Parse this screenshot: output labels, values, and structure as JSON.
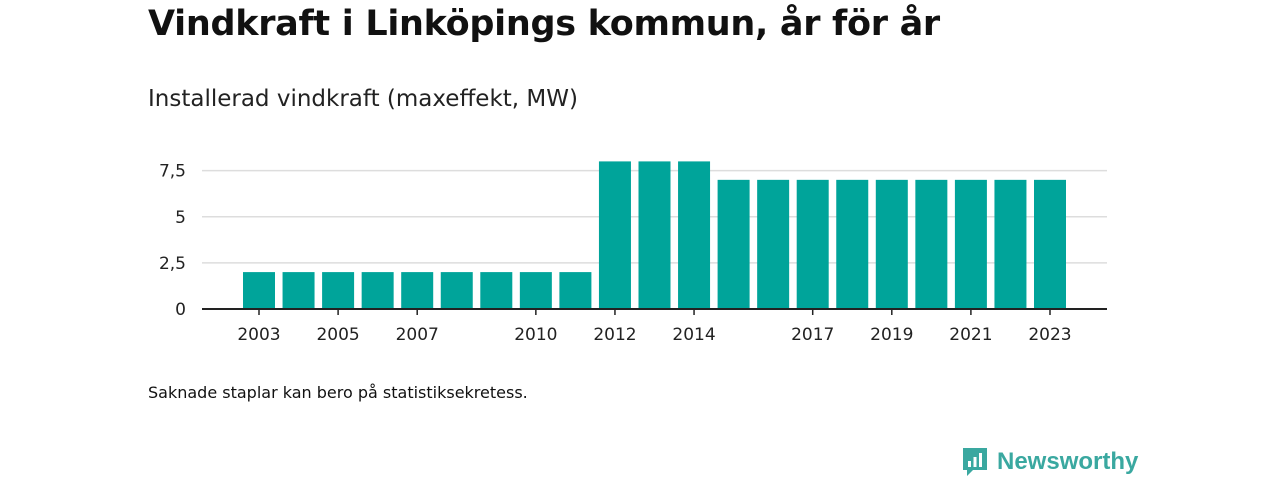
{
  "title": "Vindkraft i Linköpings kommun, år för år",
  "subtitle": "Installerad vindkraft (maxeffekt, MW)",
  "note": "Saknade staplar kan bero på statistiksekretess.",
  "brand": {
    "name": "Newsworthy",
    "icon": "newsworthy-logo-icon"
  },
  "colors": {
    "bar": "#00a49a",
    "grid": "#dddddd",
    "axis": "#222222",
    "brand": "#3aa8a0"
  },
  "chart_data": {
    "type": "bar",
    "title": "Vindkraft i Linköpings kommun, år för år",
    "subtitle": "Installerad vindkraft (maxeffekt, MW)",
    "categories": [
      "2003",
      "2004",
      "2005",
      "2006",
      "2007",
      "2008",
      "2009",
      "2010",
      "2011",
      "2012",
      "2013",
      "2014",
      "2015",
      "2016",
      "2017",
      "2018",
      "2019",
      "2020",
      "2021",
      "2022",
      "2023"
    ],
    "values": [
      2,
      2,
      2,
      2,
      2,
      2,
      2,
      2,
      2,
      8,
      8,
      8,
      7,
      7,
      7,
      7,
      7,
      7,
      7,
      7,
      7
    ],
    "xticks": [
      "2003",
      "2005",
      "2007",
      "2010",
      "2012",
      "2014",
      "2017",
      "2019",
      "2021",
      "2023"
    ],
    "yticks": [
      0,
      2.5,
      5,
      7.5
    ],
    "ytick_labels": [
      "0",
      "2,5",
      "5",
      "7,5"
    ],
    "ylim": [
      0,
      8
    ],
    "grid": true
  }
}
